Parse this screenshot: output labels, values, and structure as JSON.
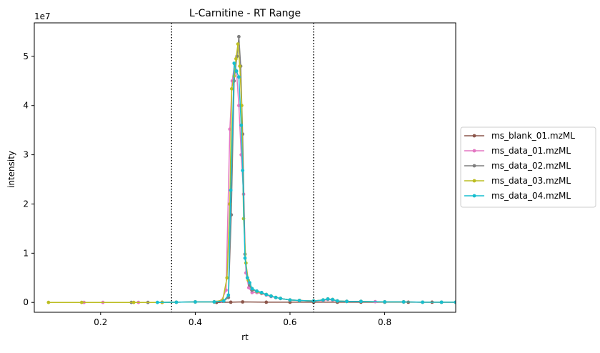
{
  "chart_data": {
    "type": "line",
    "title": "L-Carnitine - RT Range",
    "xlabel": "rt",
    "ylabel": "intensity",
    "y_multiplier_label": "1e7",
    "xlim": [
      0.06,
      0.95
    ],
    "ylim": [
      -2.0,
      56.8
    ],
    "y_unit_scale": 10000000,
    "x_ticks": [
      0.2,
      0.4,
      0.6,
      0.8
    ],
    "x_tick_labels": [
      "0.2",
      "0.4",
      "0.6",
      "0.8"
    ],
    "y_ticks": [
      0,
      10,
      20,
      30,
      40,
      50
    ],
    "y_tick_labels": [
      "0",
      "1",
      "2",
      "3",
      "4",
      "5"
    ],
    "vlines": [
      0.35,
      0.65
    ],
    "legend_position": "center-right outside",
    "series": [
      {
        "name": "ms_blank_01.mzML",
        "color": "#8c564b",
        "points": [
          [
            0.445,
            0.0
          ],
          [
            0.475,
            0.05
          ],
          [
            0.5,
            0.1
          ],
          [
            0.55,
            0.05
          ],
          [
            0.6,
            0.05
          ],
          [
            0.65,
            0.05
          ],
          [
            0.7,
            0.05
          ],
          [
            0.75,
            0.05
          ],
          [
            0.8,
            0.05
          ],
          [
            0.85,
            0.05
          ],
          [
            0.9,
            0.05
          ],
          [
            0.95,
            0.05
          ]
        ]
      },
      {
        "name": "ms_data_01.mzML",
        "color": "#e377c2",
        "points": [
          [
            0.165,
            0.0
          ],
          [
            0.205,
            0.0
          ],
          [
            0.28,
            0.0
          ],
          [
            0.33,
            0.0
          ],
          [
            0.36,
            0.05
          ],
          [
            0.4,
            0.1
          ],
          [
            0.44,
            0.1
          ],
          [
            0.455,
            0.3
          ],
          [
            0.465,
            2.5
          ],
          [
            0.473,
            35.2
          ],
          [
            0.478,
            45.0
          ],
          [
            0.483,
            48.5
          ],
          [
            0.487,
            47.0
          ],
          [
            0.492,
            40.0
          ],
          [
            0.497,
            30.0
          ],
          [
            0.502,
            22.0
          ],
          [
            0.507,
            6.0
          ],
          [
            0.513,
            3.0
          ],
          [
            0.52,
            2.0
          ],
          [
            0.53,
            2.0
          ],
          [
            0.54,
            1.8
          ],
          [
            0.55,
            1.5
          ],
          [
            0.56,
            1.2
          ],
          [
            0.57,
            1.0
          ],
          [
            0.58,
            0.8
          ],
          [
            0.6,
            0.5
          ],
          [
            0.62,
            0.4
          ],
          [
            0.65,
            0.3
          ],
          [
            0.67,
            0.4
          ],
          [
            0.68,
            0.6
          ],
          [
            0.69,
            0.5
          ],
          [
            0.7,
            0.3
          ],
          [
            0.72,
            0.2
          ],
          [
            0.75,
            0.2
          ],
          [
            0.78,
            0.15
          ],
          [
            0.8,
            0.1
          ],
          [
            0.84,
            0.1
          ],
          [
            0.88,
            0.05
          ],
          [
            0.92,
            0.05
          ],
          [
            0.95,
            0.05
          ]
        ]
      },
      {
        "name": "ms_data_02.mzML",
        "color": "#7f7f7f",
        "points": [
          [
            0.265,
            0.0
          ],
          [
            0.3,
            0.0
          ],
          [
            0.33,
            0.0
          ],
          [
            0.36,
            0.05
          ],
          [
            0.4,
            0.1
          ],
          [
            0.44,
            0.1
          ],
          [
            0.46,
            0.3
          ],
          [
            0.47,
            1.0
          ],
          [
            0.476,
            17.8
          ],
          [
            0.482,
            45.0
          ],
          [
            0.488,
            50.0
          ],
          [
            0.492,
            54.0
          ],
          [
            0.496,
            48.0
          ],
          [
            0.5,
            34.2
          ],
          [
            0.505,
            9.8
          ],
          [
            0.51,
            5.0
          ],
          [
            0.515,
            3.5
          ],
          [
            0.52,
            2.5
          ],
          [
            0.53,
            2.3
          ],
          [
            0.54,
            2.0
          ],
          [
            0.55,
            1.6
          ],
          [
            0.56,
            1.3
          ],
          [
            0.57,
            1.0
          ],
          [
            0.58,
            0.8
          ],
          [
            0.6,
            0.5
          ],
          [
            0.62,
            0.4
          ],
          [
            0.65,
            0.3
          ],
          [
            0.67,
            0.5
          ],
          [
            0.68,
            0.7
          ],
          [
            0.69,
            0.6
          ],
          [
            0.7,
            0.3
          ],
          [
            0.72,
            0.2
          ],
          [
            0.75,
            0.2
          ],
          [
            0.8,
            0.1
          ],
          [
            0.84,
            0.1
          ],
          [
            0.88,
            0.05
          ],
          [
            0.92,
            0.05
          ],
          [
            0.95,
            0.05
          ]
        ]
      },
      {
        "name": "ms_data_03.mzML",
        "color": "#bcbd22",
        "points": [
          [
            0.09,
            0.0
          ],
          [
            0.16,
            0.0
          ],
          [
            0.27,
            0.0
          ],
          [
            0.33,
            0.0
          ],
          [
            0.36,
            0.05
          ],
          [
            0.4,
            0.1
          ],
          [
            0.44,
            0.1
          ],
          [
            0.458,
            0.5
          ],
          [
            0.467,
            5.0
          ],
          [
            0.473,
            20.0
          ],
          [
            0.477,
            43.4
          ],
          [
            0.482,
            46.0
          ],
          [
            0.486,
            49.5
          ],
          [
            0.49,
            52.5
          ],
          [
            0.494,
            48.0
          ],
          [
            0.498,
            40.0
          ],
          [
            0.502,
            17.0
          ],
          [
            0.507,
            8.0
          ],
          [
            0.512,
            4.5
          ],
          [
            0.52,
            2.8
          ],
          [
            0.53,
            2.2
          ],
          [
            0.54,
            1.9
          ],
          [
            0.55,
            1.6
          ],
          [
            0.56,
            1.3
          ],
          [
            0.57,
            1.0
          ],
          [
            0.58,
            0.8
          ],
          [
            0.6,
            0.5
          ],
          [
            0.62,
            0.4
          ],
          [
            0.65,
            0.3
          ],
          [
            0.67,
            0.5
          ],
          [
            0.68,
            0.7
          ],
          [
            0.69,
            0.6
          ],
          [
            0.7,
            0.3
          ],
          [
            0.72,
            0.2
          ],
          [
            0.75,
            0.2
          ],
          [
            0.8,
            0.1
          ],
          [
            0.84,
            0.1
          ],
          [
            0.88,
            0.05
          ],
          [
            0.92,
            0.05
          ],
          [
            0.95,
            0.05
          ]
        ]
      },
      {
        "name": "ms_data_04.mzML",
        "color": "#17becf",
        "points": [
          [
            0.32,
            0.0
          ],
          [
            0.36,
            0.05
          ],
          [
            0.4,
            0.1
          ],
          [
            0.44,
            0.1
          ],
          [
            0.46,
            0.3
          ],
          [
            0.47,
            1.5
          ],
          [
            0.475,
            22.8
          ],
          [
            0.482,
            48.6
          ],
          [
            0.487,
            47.0
          ],
          [
            0.492,
            45.8
          ],
          [
            0.497,
            36.0
          ],
          [
            0.5,
            26.8
          ],
          [
            0.505,
            9.0
          ],
          [
            0.51,
            5.0
          ],
          [
            0.515,
            4.0
          ],
          [
            0.52,
            2.8
          ],
          [
            0.53,
            2.3
          ],
          [
            0.54,
            2.0
          ],
          [
            0.55,
            1.6
          ],
          [
            0.56,
            1.3
          ],
          [
            0.57,
            1.0
          ],
          [
            0.58,
            0.8
          ],
          [
            0.6,
            0.5
          ],
          [
            0.62,
            0.4
          ],
          [
            0.65,
            0.3
          ],
          [
            0.67,
            0.5
          ],
          [
            0.68,
            0.7
          ],
          [
            0.69,
            0.6
          ],
          [
            0.7,
            0.3
          ],
          [
            0.72,
            0.2
          ],
          [
            0.75,
            0.2
          ],
          [
            0.8,
            0.1
          ],
          [
            0.84,
            0.1
          ],
          [
            0.88,
            0.05
          ],
          [
            0.92,
            0.05
          ],
          [
            0.95,
            0.05
          ]
        ]
      }
    ]
  }
}
